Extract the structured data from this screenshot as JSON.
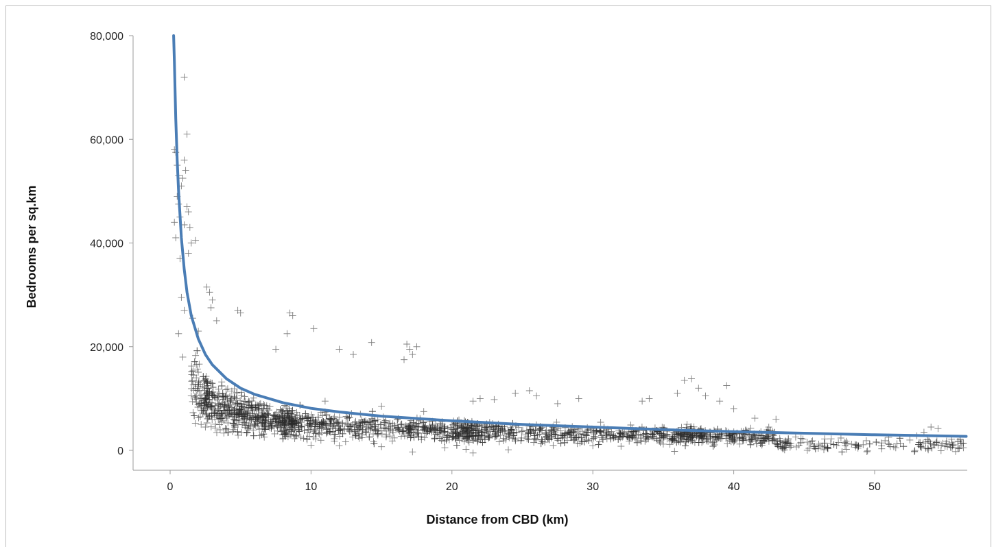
{
  "chart_data": {
    "type": "scatter",
    "title": "",
    "xlabel": "Distance from CBD (km)",
    "ylabel": "Bedrooms per sq.km",
    "xlim": [
      -2.5,
      56.5
    ],
    "ylim": [
      -3900,
      80000
    ],
    "x_ticks": [
      0,
      10,
      20,
      30,
      40,
      50
    ],
    "y_ticks": [
      0,
      20000,
      40000,
      60000,
      80000
    ],
    "x_tick_labels": [
      "0",
      "10",
      "20",
      "30",
      "40",
      "50"
    ],
    "y_tick_labels": [
      "0",
      "20,000",
      "40,000",
      "60,000",
      "80,000"
    ],
    "grid": false,
    "legend": "none",
    "marker": "plus",
    "colors": {
      "points": "#2b2b2b",
      "fit_line": "#4a7db5",
      "axis": "#9a9a9a"
    },
    "series": [
      {
        "kind": "scatter",
        "points": [
          [
            0.3,
            58000
          ],
          [
            0.4,
            57500
          ],
          [
            0.5,
            55000
          ],
          [
            0.6,
            53000
          ],
          [
            0.5,
            49000
          ],
          [
            0.3,
            44000
          ],
          [
            0.4,
            41000
          ],
          [
            0.6,
            47500
          ],
          [
            0.7,
            45000
          ],
          [
            0.8,
            51000
          ],
          [
            0.9,
            52500
          ],
          [
            1.0,
            56000
          ],
          [
            1.1,
            54000
          ],
          [
            1.2,
            47000
          ],
          [
            1.3,
            46000
          ],
          [
            1.0,
            43500
          ],
          [
            0.7,
            37000
          ],
          [
            1.3,
            38000
          ],
          [
            1.5,
            40000
          ],
          [
            1.4,
            43000
          ],
          [
            1.8,
            40500
          ],
          [
            1.2,
            61000
          ],
          [
            1.0,
            72000
          ],
          [
            0.8,
            29500
          ],
          [
            1.0,
            27000
          ],
          [
            0.6,
            22500
          ],
          [
            0.9,
            18000
          ],
          [
            1.6,
            25500
          ],
          [
            2.0,
            23000
          ],
          [
            2.6,
            31500
          ],
          [
            2.8,
            30500
          ],
          [
            3.0,
            29000
          ],
          [
            2.9,
            27500
          ],
          [
            3.3,
            25000
          ],
          [
            4.8,
            27000
          ],
          [
            5.0,
            26500
          ],
          [
            8.5,
            26500
          ],
          [
            8.7,
            26000
          ],
          [
            10.2,
            23500
          ],
          [
            14.3,
            20800
          ],
          [
            16.8,
            20500
          ],
          [
            17.0,
            19500
          ],
          [
            17.2,
            18500
          ],
          [
            17.5,
            20000
          ],
          [
            16.6,
            17500
          ],
          [
            8.3,
            22500
          ],
          [
            12.0,
            19500
          ],
          [
            13.0,
            18500
          ],
          [
            7.5,
            19500
          ],
          [
            1.5,
            10500
          ],
          [
            2.2,
            5000
          ],
          [
            2.5,
            4500
          ],
          [
            4.5,
            4000
          ],
          [
            5.5,
            3500
          ],
          [
            6.5,
            3000
          ],
          [
            8.0,
            2200
          ],
          [
            10.0,
            1000
          ],
          [
            12.0,
            900
          ],
          [
            15.0,
            700
          ],
          [
            17.2,
            -300
          ],
          [
            19.5,
            500
          ],
          [
            21.0,
            200
          ],
          [
            21.5,
            -500
          ],
          [
            24.0,
            100
          ],
          [
            28.0,
            1500
          ],
          [
            30.0,
            900
          ],
          [
            32.0,
            800
          ],
          [
            35.0,
            1200
          ],
          [
            35.8,
            -200
          ],
          [
            38.5,
            1500
          ],
          [
            40.0,
            1600
          ],
          [
            42.0,
            1000
          ],
          [
            44.0,
            600
          ],
          [
            46.0,
            400
          ],
          [
            48.0,
            200
          ],
          [
            49.5,
            -100
          ],
          [
            50.5,
            300
          ],
          [
            51.5,
            500
          ],
          [
            52.5,
            2000
          ],
          [
            53.0,
            2800
          ],
          [
            53.5,
            3500
          ],
          [
            54.0,
            4500
          ],
          [
            54.5,
            4200
          ],
          [
            55.0,
            800
          ],
          [
            56.0,
            400
          ],
          [
            56.3,
            500
          ],
          [
            36.5,
            13500
          ],
          [
            37.0,
            13800
          ],
          [
            37.5,
            12000
          ],
          [
            39.5,
            12500
          ],
          [
            36.0,
            11000
          ],
          [
            38.0,
            10500
          ],
          [
            39.0,
            9500
          ],
          [
            40.0,
            8000
          ],
          [
            41.5,
            6200
          ],
          [
            43.0,
            6000
          ],
          [
            25.5,
            11500
          ],
          [
            24.5,
            11000
          ],
          [
            26.0,
            10500
          ],
          [
            22.0,
            10000
          ],
          [
            23.0,
            9800
          ],
          [
            21.5,
            9500
          ],
          [
            27.5,
            9000
          ],
          [
            29.0,
            10000
          ],
          [
            33.5,
            9500
          ],
          [
            34.0,
            10000
          ],
          [
            11.0,
            9500
          ],
          [
            13.5,
            7000
          ],
          [
            15.0,
            8500
          ],
          [
            18.0,
            7500
          ]
        ],
        "cloud_note": "dense cloud of ~2,400 further points following the fitted curve"
      },
      {
        "kind": "line",
        "points": [
          [
            0.25,
            80000
          ],
          [
            0.3,
            75000
          ],
          [
            0.4,
            64000
          ],
          [
            0.5,
            56000
          ],
          [
            0.6,
            50000
          ],
          [
            0.8,
            41000
          ],
          [
            1.0,
            35000
          ],
          [
            1.2,
            30500
          ],
          [
            1.5,
            26000
          ],
          [
            2.0,
            21500
          ],
          [
            2.5,
            18500
          ],
          [
            3.0,
            16500
          ],
          [
            4.0,
            13800
          ],
          [
            5.0,
            12000
          ],
          [
            6.0,
            10800
          ],
          [
            8.0,
            9200
          ],
          [
            10.0,
            8100
          ],
          [
            12.0,
            7400
          ],
          [
            15.0,
            6600
          ],
          [
            20.0,
            5700
          ],
          [
            25.0,
            5000
          ],
          [
            30.0,
            4500
          ],
          [
            35.0,
            4000
          ],
          [
            40.0,
            3600
          ],
          [
            45.0,
            3300
          ],
          [
            50.0,
            3000
          ],
          [
            56.5,
            2700
          ]
        ]
      }
    ]
  }
}
